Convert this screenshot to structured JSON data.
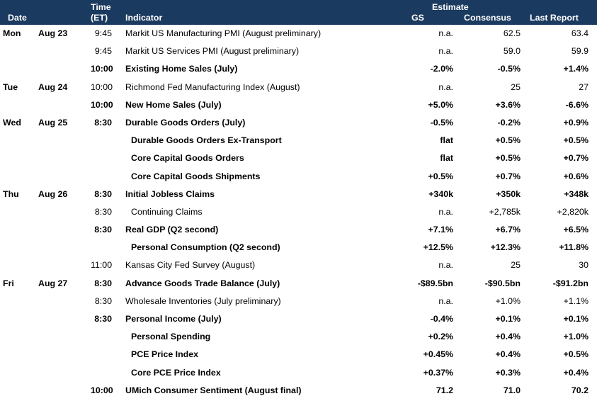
{
  "header": {
    "date": "Date",
    "time_line1": "Time",
    "time_line2": "(ET)",
    "indicator": "Indicator",
    "estimate": "Estimate",
    "gs": "GS",
    "consensus": "Consensus",
    "last_report": "Last Report"
  },
  "colors": {
    "header_bg": "#1b3a5f",
    "header_text": "#ffffff"
  },
  "rows": [
    {
      "day": "Mon",
      "date": "Aug 23",
      "time": "9:45",
      "indicator": "Markit US Manufacturing PMI (August preliminary)",
      "gs": "n.a.",
      "consensus": "62.5",
      "last": "63.4",
      "bold": false,
      "sub": false
    },
    {
      "day": "",
      "date": "",
      "time": "9:45",
      "indicator": "Markit US Services PMI (August preliminary)",
      "gs": "n.a.",
      "consensus": "59.0",
      "last": "59.9",
      "bold": false,
      "sub": false
    },
    {
      "day": "",
      "date": "",
      "time": "10:00",
      "indicator": "Existing Home Sales (July)",
      "gs": "-2.0%",
      "consensus": "-0.5%",
      "last": "+1.4%",
      "bold": true,
      "sub": false
    },
    {
      "day": "Tue",
      "date": "Aug 24",
      "time": "10:00",
      "indicator": "Richmond Fed Manufacturing Index (August)",
      "gs": "n.a.",
      "consensus": "25",
      "last": "27",
      "bold": false,
      "sub": false
    },
    {
      "day": "",
      "date": "",
      "time": "10:00",
      "indicator": "New Home Sales (July)",
      "gs": "+5.0%",
      "consensus": "+3.6%",
      "last": "-6.6%",
      "bold": true,
      "sub": false
    },
    {
      "day": "Wed",
      "date": "Aug 25",
      "time": "8:30",
      "indicator": "Durable Goods Orders (July)",
      "gs": "-0.5%",
      "consensus": "-0.2%",
      "last": "+0.9%",
      "bold": true,
      "sub": false
    },
    {
      "day": "",
      "date": "",
      "time": "",
      "indicator": "Durable Goods Orders Ex-Transport",
      "gs": "flat",
      "consensus": "+0.5%",
      "last": "+0.5%",
      "bold": true,
      "sub": true
    },
    {
      "day": "",
      "date": "",
      "time": "",
      "indicator": "Core Capital Goods Orders",
      "gs": "flat",
      "consensus": "+0.5%",
      "last": "+0.7%",
      "bold": true,
      "sub": true
    },
    {
      "day": "",
      "date": "",
      "time": "",
      "indicator": "Core Capital Goods Shipments",
      "gs": "+0.5%",
      "consensus": "+0.7%",
      "last": "+0.6%",
      "bold": true,
      "sub": true
    },
    {
      "day": "Thu",
      "date": "Aug 26",
      "time": "8:30",
      "indicator": "Initial Jobless Claims",
      "gs": "+340k",
      "consensus": "+350k",
      "last": "+348k",
      "bold": true,
      "sub": false
    },
    {
      "day": "",
      "date": "",
      "time": "8:30",
      "indicator": "Continuing Claims",
      "gs": "n.a.",
      "consensus": "+2,785k",
      "last": "+2,820k",
      "bold": false,
      "sub": true
    },
    {
      "day": "",
      "date": "",
      "time": "8:30",
      "indicator": "Real GDP (Q2 second)",
      "gs": "+7.1%",
      "consensus": "+6.7%",
      "last": "+6.5%",
      "bold": true,
      "sub": false
    },
    {
      "day": "",
      "date": "",
      "time": "",
      "indicator": "Personal Consumption (Q2 second)",
      "gs": "+12.5%",
      "consensus": "+12.3%",
      "last": "+11.8%",
      "bold": true,
      "sub": true
    },
    {
      "day": "",
      "date": "",
      "time": "11:00",
      "indicator": "Kansas City Fed Survey (August)",
      "gs": "n.a.",
      "consensus": "25",
      "last": "30",
      "bold": false,
      "sub": false
    },
    {
      "day": "Fri",
      "date": "Aug 27",
      "time": "8:30",
      "indicator": "Advance Goods Trade Balance (July)",
      "gs": "-$89.5bn",
      "consensus": "-$90.5bn",
      "last": "-$91.2bn",
      "bold": true,
      "sub": false
    },
    {
      "day": "",
      "date": "",
      "time": "8:30",
      "indicator": "Wholesale Inventories (July preliminary)",
      "gs": "n.a.",
      "consensus": "+1.0%",
      "last": "+1.1%",
      "bold": false,
      "sub": false
    },
    {
      "day": "",
      "date": "",
      "time": "8:30",
      "indicator": "Personal Income (July)",
      "gs": "-0.4%",
      "consensus": "+0.1%",
      "last": "+0.1%",
      "bold": true,
      "sub": false
    },
    {
      "day": "",
      "date": "",
      "time": "",
      "indicator": "Personal Spending",
      "gs": "+0.2%",
      "consensus": "+0.4%",
      "last": "+1.0%",
      "bold": true,
      "sub": true
    },
    {
      "day": "",
      "date": "",
      "time": "",
      "indicator": "PCE Price Index",
      "gs": "+0.45%",
      "consensus": "+0.4%",
      "last": "+0.5%",
      "bold": true,
      "sub": true
    },
    {
      "day": "",
      "date": "",
      "time": "",
      "indicator": "Core PCE Price Index",
      "gs": "+0.37%",
      "consensus": "+0.3%",
      "last": "+0.4%",
      "bold": true,
      "sub": true
    },
    {
      "day": "",
      "date": "",
      "time": "10:00",
      "indicator": "UMich Consumer Sentiment (August final)",
      "gs": "71.2",
      "consensus": "71.0",
      "last": "70.2",
      "bold": true,
      "sub": false
    }
  ]
}
